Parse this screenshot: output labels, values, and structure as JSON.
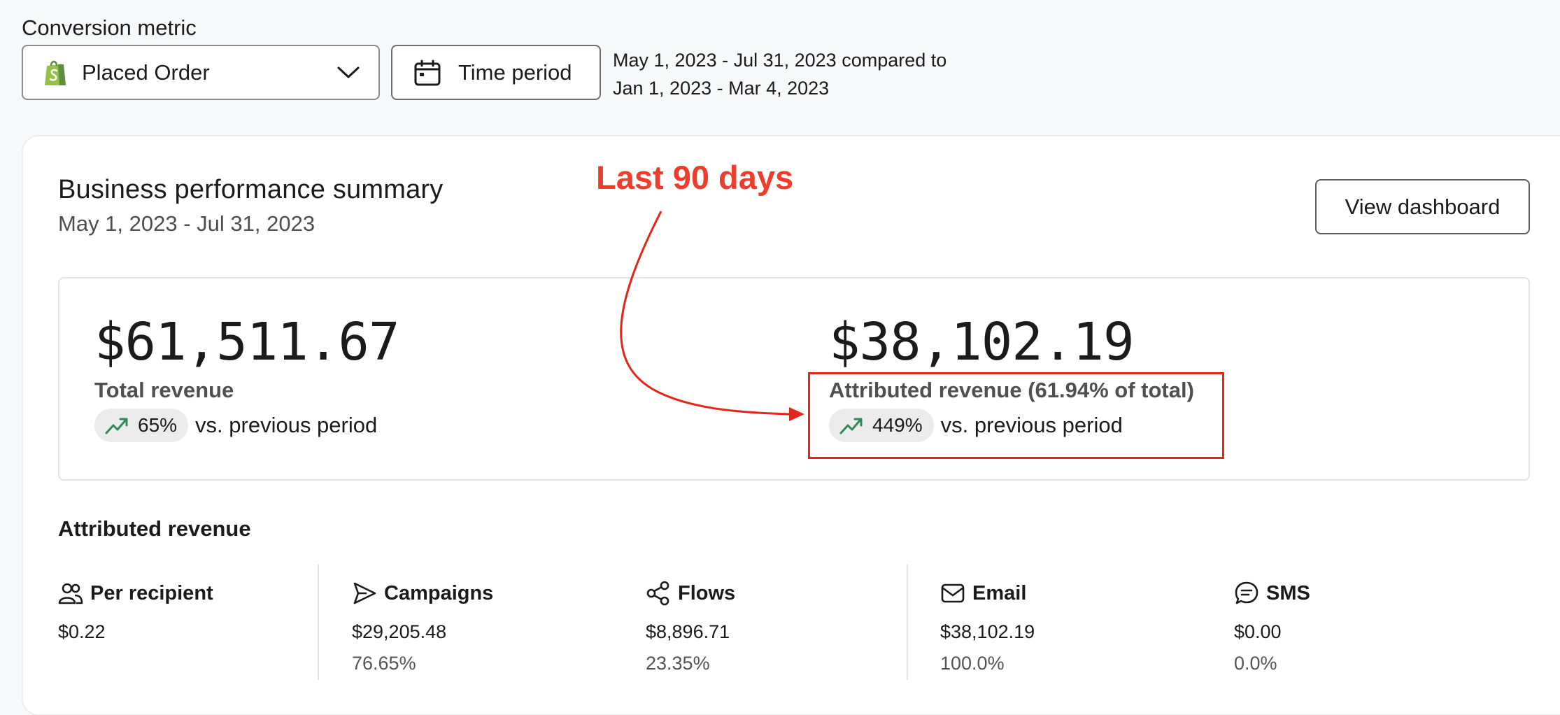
{
  "conversion_metric": {
    "label": "Conversion metric",
    "selected": "Placed Order",
    "icon": "shopify-bag-icon"
  },
  "time_period": {
    "button_label": "Time period",
    "range_line1": "May 1, 2023 - Jul 31, 2023 compared to",
    "range_line2": "Jan 1, 2023 - Mar 4, 2023"
  },
  "summary": {
    "title": "Business performance summary",
    "date_range": "May 1, 2023 - Jul 31, 2023",
    "view_dashboard": "View dashboard",
    "total": {
      "value": "$61,511.67",
      "label": "Total revenue",
      "change": "65%",
      "vs": "vs. previous period"
    },
    "attributed": {
      "value": "$38,102.19",
      "label": "Attributed revenue (61.94% of total)",
      "change": "449%",
      "vs": "vs. previous period"
    }
  },
  "annotation": {
    "text": "Last 90 days",
    "color": "#ef3c2d"
  },
  "attributed_revenue": {
    "title": "Attributed revenue",
    "stats": [
      {
        "label": "Per recipient",
        "value": "$0.22",
        "pct": "",
        "icon": "users-icon"
      },
      {
        "label": "Campaigns",
        "value": "$29,205.48",
        "pct": "76.65%",
        "icon": "send-icon"
      },
      {
        "label": "Flows",
        "value": "$8,896.71",
        "pct": "23.35%",
        "icon": "flows-icon"
      },
      {
        "label": "Email",
        "value": "$38,102.19",
        "pct": "100.0%",
        "icon": "mail-icon"
      },
      {
        "label": "SMS",
        "value": "$0.00",
        "pct": "0.0%",
        "icon": "sms-icon"
      }
    ]
  },
  "colors": {
    "trend_up": "#2e8b57",
    "highlight": "#e3261a"
  }
}
